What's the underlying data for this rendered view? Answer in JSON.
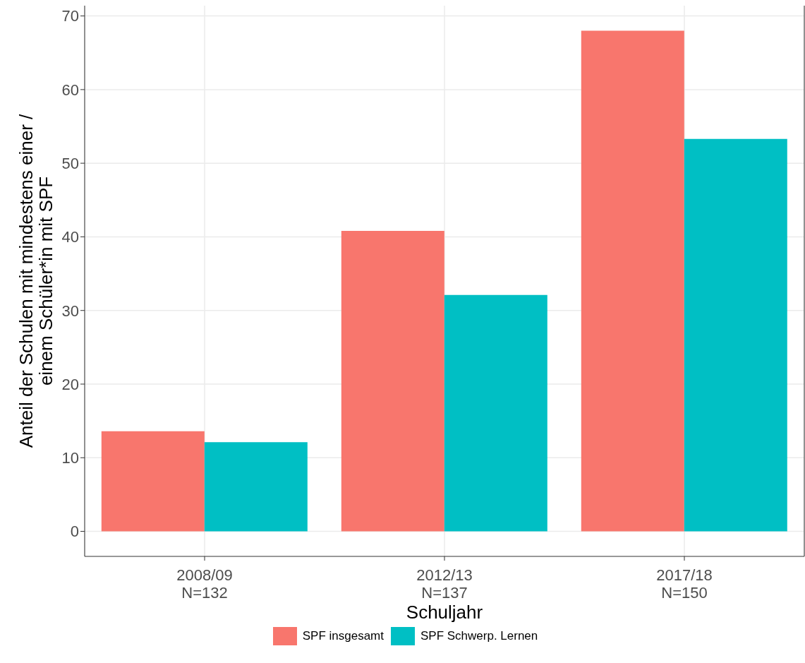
{
  "chart_data": {
    "type": "bar",
    "xlabel": "Schuljahr",
    "ylabel": "Anteil der Schulen mit mindestens einer /\neinem Schüler*in mit SPF",
    "categories": [
      "2008/09\nN=132",
      "2012/13\nN=137",
      "2017/18\nN=150"
    ],
    "series": [
      {
        "name": "SPF insgesamt",
        "color": "#f8766d",
        "values": [
          13.6,
          40.8,
          68.0
        ]
      },
      {
        "name": "SPF Schwerp. Lernen",
        "color": "#00bfc4",
        "values": [
          12.1,
          32.1,
          53.3
        ]
      }
    ],
    "ylim": [
      -3.4,
      71.4
    ],
    "yticks": [
      0,
      10,
      20,
      30,
      40,
      50,
      60,
      70
    ],
    "grid": true,
    "legend": "bottom"
  }
}
